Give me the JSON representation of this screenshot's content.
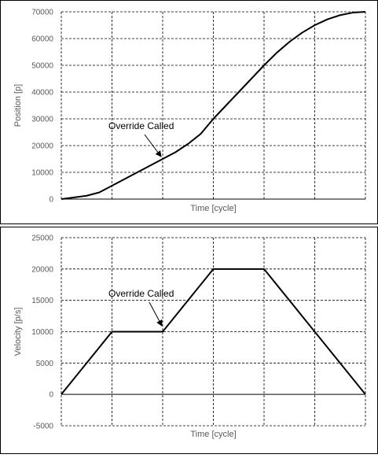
{
  "chart_data": [
    {
      "type": "line",
      "ylabel": "Position [p]",
      "xlabel": "Time [cycle]",
      "ylim": [
        0,
        70000
      ],
      "xlim": [
        0,
        6
      ],
      "y_ticks": [
        0,
        10000,
        20000,
        30000,
        40000,
        50000,
        60000,
        70000
      ],
      "y_tick_labels": [
        "0",
        "10000",
        "20000",
        "30000",
        "40000",
        "50000",
        "60000",
        "70000"
      ],
      "grid": true,
      "grid_style": "dashed",
      "series": [
        {
          "x": [
            0,
            0.25,
            0.5,
            0.75,
            1.0,
            1.25,
            1.5,
            1.75,
            2.0,
            2.25,
            2.5,
            2.75,
            3.0,
            3.25,
            3.5,
            3.75,
            4.0,
            4.25,
            4.5,
            4.75,
            5.0,
            5.25,
            5.5,
            5.75,
            6.0
          ],
          "y": [
            0,
            625,
            1250,
            2500,
            5000,
            7500,
            10000,
            12500,
            15000,
            17500,
            20625,
            24375,
            30000,
            35000,
            40000,
            45000,
            50000,
            54688,
            58750,
            62188,
            65000,
            67188,
            68750,
            69688,
            70000
          ]
        }
      ],
      "annotations": [
        {
          "text": "Override Called",
          "target": [
            2.0,
            15000
          ]
        }
      ],
      "legend": "none"
    },
    {
      "type": "line",
      "ylabel": "Velocity [p/s]",
      "xlabel": "Time [cycle]",
      "ylim": [
        -5000,
        25000
      ],
      "xlim": [
        0,
        6
      ],
      "y_ticks": [
        -5000,
        0,
        5000,
        10000,
        15000,
        20000,
        25000
      ],
      "y_tick_labels": [
        "-5000",
        "0",
        "5000",
        "10000",
        "15000",
        "20000",
        "25000"
      ],
      "grid": true,
      "grid_style": "dashed",
      "series": [
        {
          "x": [
            0,
            1,
            2,
            3,
            4,
            6
          ],
          "y": [
            0,
            10000,
            10000,
            20000,
            20000,
            0
          ]
        }
      ],
      "annotations": [
        {
          "text": "Override Called",
          "target": [
            2.0,
            10000
          ]
        }
      ],
      "legend": "none"
    }
  ]
}
